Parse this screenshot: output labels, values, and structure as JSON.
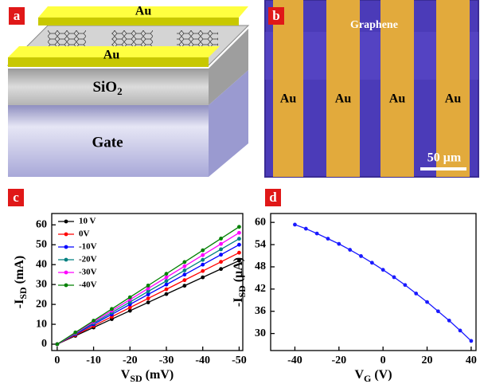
{
  "panel_labels": [
    "a",
    "b",
    "c",
    "d"
  ],
  "diagram": {
    "top_electrode": "Au",
    "bottom_electrode": "Au",
    "oxide": [
      "SiO",
      "2"
    ],
    "gate": "Gate"
  },
  "micrograph": {
    "region": "Graphene",
    "electrodes": [
      "Au",
      "Au",
      "Au",
      "Au"
    ],
    "scale_bar": "50 μm"
  },
  "chart_data": [
    {
      "type": "line",
      "x": [
        0,
        -5,
        -10,
        -15,
        -20,
        -25,
        -30,
        -35,
        -40,
        -45,
        -50
      ],
      "series": [
        {
          "name": "10 V",
          "color": "#000000",
          "values": [
            0,
            4.2,
            8.4,
            12.6,
            16.8,
            21,
            25.2,
            29.4,
            33.6,
            37.8,
            42
          ]
        },
        {
          "name": "0V",
          "color": "#ff0000",
          "values": [
            0,
            4.6,
            9.2,
            13.8,
            18.4,
            23,
            27.6,
            32.2,
            36.8,
            41.4,
            46
          ]
        },
        {
          "name": "-10V",
          "color": "#0000ff",
          "values": [
            0,
            5,
            10,
            15,
            20,
            25,
            30,
            35,
            40,
            45,
            50
          ]
        },
        {
          "name": "-20V",
          "color": "#008080",
          "values": [
            0,
            5.3,
            10.6,
            15.9,
            21.2,
            26.5,
            31.8,
            37.1,
            42.4,
            47.7,
            53
          ]
        },
        {
          "name": "-30V",
          "color": "#ff00ff",
          "values": [
            0,
            5.6,
            11.2,
            16.8,
            22.4,
            28,
            33.6,
            39.2,
            44.8,
            50.4,
            56
          ]
        },
        {
          "name": "-40V",
          "color": "#008000",
          "values": [
            0,
            5.9,
            11.8,
            17.7,
            23.6,
            29.5,
            35.4,
            41.3,
            47.2,
            53.1,
            59
          ]
        }
      ],
      "xlim": [
        1.5,
        -51
      ],
      "ylim": [
        -3.2,
        65.7
      ],
      "xticks": [
        0,
        -10,
        -20,
        -30,
        -40,
        -50
      ],
      "yticks": [
        0,
        10,
        20,
        30,
        40,
        50,
        60
      ],
      "xlabel": [
        "V",
        "SD",
        " (mV)"
      ],
      "ylabel": [
        "-I",
        "SD",
        " (mA)"
      ],
      "legend": "upper left"
    },
    {
      "type": "line",
      "x": [
        -40,
        -35,
        -30,
        -25,
        -20,
        -15,
        -10,
        -5,
        0,
        5,
        10,
        15,
        20,
        25,
        30,
        35,
        40
      ],
      "values": [
        59.4,
        58.3,
        57.0,
        55.6,
        54.2,
        52.6,
        50.9,
        49.1,
        47.2,
        45.2,
        43.1,
        40.8,
        38.5,
        36.0,
        33.5,
        30.8,
        28.0
      ],
      "color": "#1a1aff",
      "xlim": [
        -51,
        42.2
      ],
      "ylim": [
        25.4,
        62.4
      ],
      "xticks": [
        -40,
        -20,
        0,
        20,
        40
      ],
      "yticks": [
        30,
        36,
        42,
        48,
        54,
        60
      ],
      "xlabel": [
        "V",
        "G",
        " (V)"
      ],
      "ylabel": [
        "-I",
        "SD",
        "  (μA)"
      ]
    }
  ]
}
